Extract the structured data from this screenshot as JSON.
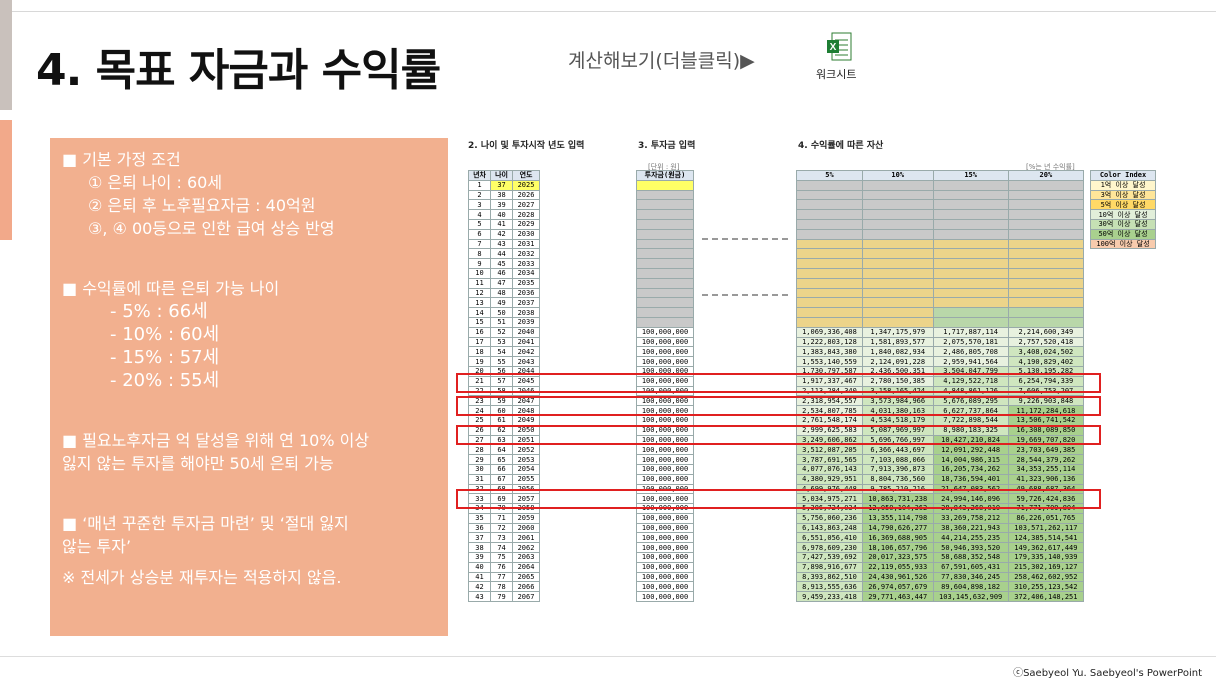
{
  "title": "4. 목표 자금과 수익률",
  "calc_link": "계산해보기(더블클릭)▶",
  "excel_label": "워크시트",
  "panel": {
    "l1": "■ 기본 가정 조건",
    "l2": "① 은퇴 나이 : 60세",
    "l3": "② 은퇴 후 노후필요자금 : 40억원",
    "l4": "③, ④ 00등으로 인한 급여 상승 반영",
    "l5": "■ 수익률에 따른 은퇴 가능 나이",
    "l6": "- 5% : 66세",
    "l7": "- 10% : 60세",
    "l8": "- 15% : 57세",
    "l9": "- 20% : 55세",
    "l10": "■ 필요노후자금 억 달성을 위해 연 10% 이상",
    "l11": "잃지 않는 투자를 해야만 50세 은퇴 가능",
    "l12": "■ ‘매년 꾸준한 투자금 마련’ 및 ‘절대 잃지",
    "l13": "않는 투자’",
    "l14": "※ 전세가 상승분 재투자는 적용하지 않음."
  },
  "sheet": {
    "s2_title": "2. 나이 및 투자시작 년도 입력",
    "s3_title": "3. 투자금 입력",
    "s4_title": "4. 수익률에 따른 자산",
    "unit_note": "[단위 : 원]",
    "rate_note": "[%는 년 수익률]",
    "h_year_no": "년차",
    "h_age": "나이",
    "h_year": "연도",
    "h_invest": "투자금(원금)",
    "h_r1": "5%",
    "h_r2": "10%",
    "h_r3": "15%",
    "h_r4": "20%",
    "ci_title": "Color Index",
    "ci": [
      "1억 이상 달성",
      "3억 이상 달성",
      "5억 이상 달성",
      "10억 이상 달성",
      "30억 이상 달성",
      "50억 이상 달성",
      "100억 이상 달성"
    ],
    "rows": [
      [
        "1",
        "37",
        "2025",
        "",
        "",
        "",
        "",
        ""
      ],
      [
        "2",
        "38",
        "2026",
        "",
        "",
        "",
        "",
        ""
      ],
      [
        "3",
        "39",
        "2027",
        "",
        "",
        "",
        "",
        ""
      ],
      [
        "4",
        "40",
        "2028",
        "",
        "",
        "",
        "",
        ""
      ],
      [
        "5",
        "41",
        "2029",
        "",
        "",
        "",
        "",
        ""
      ],
      [
        "6",
        "42",
        "2030",
        "",
        "",
        "",
        "",
        ""
      ],
      [
        "7",
        "43",
        "2031",
        "",
        "",
        "",
        "",
        ""
      ],
      [
        "8",
        "44",
        "2032",
        "",
        "",
        "",
        "",
        ""
      ],
      [
        "9",
        "45",
        "2033",
        "",
        "",
        "",
        "",
        ""
      ],
      [
        "10",
        "46",
        "2034",
        "",
        "",
        "",
        "",
        ""
      ],
      [
        "11",
        "47",
        "2035",
        "",
        "",
        "",
        "",
        ""
      ],
      [
        "12",
        "48",
        "2036",
        "",
        "",
        "",
        "",
        ""
      ],
      [
        "13",
        "49",
        "2037",
        "",
        "",
        "",
        "",
        ""
      ],
      [
        "14",
        "50",
        "2038",
        "",
        "",
        "",
        "",
        ""
      ],
      [
        "15",
        "51",
        "2039",
        "",
        "",
        "",
        "",
        ""
      ],
      [
        "16",
        "52",
        "2040",
        "100,000,000",
        "1,069,336,408",
        "1,347,175,979",
        "1,717,887,114",
        "2,214,600,349"
      ],
      [
        "17",
        "53",
        "2041",
        "100,000,000",
        "1,222,803,128",
        "1,581,893,577",
        "2,075,570,181",
        "2,757,520,418"
      ],
      [
        "18",
        "54",
        "2042",
        "100,000,000",
        "1,383,843,380",
        "1,840,082,934",
        "2,486,805,708",
        "3,408,024,502"
      ],
      [
        "19",
        "55",
        "2043",
        "100,000,000",
        "1,553,140,559",
        "2,124,091,228",
        "2,959,941,564",
        "4,190,829,402"
      ],
      [
        "20",
        "56",
        "2044",
        "100,000,000",
        "1,730,797,587",
        "2,436,500,351",
        "3,504,047,799",
        "5,130,195,282"
      ],
      [
        "21",
        "57",
        "2045",
        "100,000,000",
        "1,917,337,467",
        "2,780,150,385",
        "4,129,522,718",
        "6,254,794,339"
      ],
      [
        "22",
        "58",
        "2046",
        "100,000,000",
        "2,113,284,340",
        "3,158,165,424",
        "4,848,861,126",
        "7,606,753,207"
      ],
      [
        "23",
        "59",
        "2047",
        "100,000,000",
        "2,318,954,557",
        "3,573,984,966",
        "5,676,089,295",
        "9,226,903,848"
      ],
      [
        "24",
        "60",
        "2048",
        "100,000,000",
        "2,534,807,785",
        "4,031,380,163",
        "6,627,737,864",
        "11,172,284,618"
      ],
      [
        "25",
        "61",
        "2049",
        "100,000,000",
        "2,761,548,174",
        "4,534,518,179",
        "7,722,898,544",
        "13,506,741,542"
      ],
      [
        "26",
        "62",
        "2050",
        "100,000,000",
        "2,999,625,583",
        "5,087,969,997",
        "8,980,183,325",
        "16,308,089,850"
      ],
      [
        "27",
        "63",
        "2051",
        "100,000,000",
        "3,249,606,862",
        "5,696,766,997",
        "10,427,210,824",
        "19,669,707,820"
      ],
      [
        "28",
        "64",
        "2052",
        "100,000,000",
        "3,512,087,205",
        "6,366,443,697",
        "12,091,292,448",
        "23,703,649,385"
      ],
      [
        "29",
        "65",
        "2053",
        "100,000,000",
        "3,787,691,565",
        "7,103,088,066",
        "14,004,986,315",
        "28,544,379,262"
      ],
      [
        "30",
        "66",
        "2054",
        "100,000,000",
        "4,077,076,143",
        "7,913,396,873",
        "16,205,734,262",
        "34,353,255,114"
      ],
      [
        "31",
        "67",
        "2055",
        "100,000,000",
        "4,380,929,951",
        "8,804,736,560",
        "18,736,594,401",
        "41,323,906,136"
      ],
      [
        "32",
        "68",
        "2056",
        "100,000,000",
        "4,699,976,448",
        "9,785,210,216",
        "21,647,083,562",
        "49,688,687,364"
      ],
      [
        "33",
        "69",
        "2057",
        "100,000,000",
        "5,034,975,271",
        "10,863,731,238",
        "24,994,146,096",
        "59,726,424,836"
      ],
      [
        "34",
        "70",
        "2058",
        "100,000,000",
        "5,386,724,034",
        "12,050,104,362",
        "28,843,268,010",
        "71,771,709,804"
      ],
      [
        "35",
        "71",
        "2059",
        "100,000,000",
        "5,756,060,236",
        "13,355,114,798",
        "33,269,758,212",
        "86,226,051,765"
      ],
      [
        "36",
        "72",
        "2060",
        "100,000,000",
        "6,143,863,248",
        "14,790,626,277",
        "38,360,221,943",
        "103,571,262,117"
      ],
      [
        "37",
        "73",
        "2061",
        "100,000,000",
        "6,551,056,410",
        "16,369,688,905",
        "44,214,255,235",
        "124,385,514,541"
      ],
      [
        "38",
        "74",
        "2062",
        "100,000,000",
        "6,978,609,230",
        "18,106,657,796",
        "50,946,393,520",
        "149,362,617,449"
      ],
      [
        "39",
        "75",
        "2063",
        "100,000,000",
        "7,427,539,692",
        "20,017,323,575",
        "58,688,352,548",
        "179,335,140,939"
      ],
      [
        "40",
        "76",
        "2064",
        "100,000,000",
        "7,898,916,677",
        "22,119,055,933",
        "67,591,605,431",
        "215,302,169,127"
      ],
      [
        "41",
        "77",
        "2065",
        "100,000,000",
        "8,393,862,510",
        "24,430,961,526",
        "77,830,346,245",
        "258,462,602,952"
      ],
      [
        "42",
        "78",
        "2066",
        "100,000,000",
        "8,913,555,636",
        "26,974,057,679",
        "89,604,898,182",
        "310,255,123,542"
      ],
      [
        "43",
        "79",
        "2067",
        "100,000,000",
        "9,459,233,418",
        "29,771,463,447",
        "103,145,632,909",
        "372,406,148,251"
      ]
    ]
  },
  "footer": "ⓒSaebyeol Yu.  Saebyeol's PowerPoint"
}
